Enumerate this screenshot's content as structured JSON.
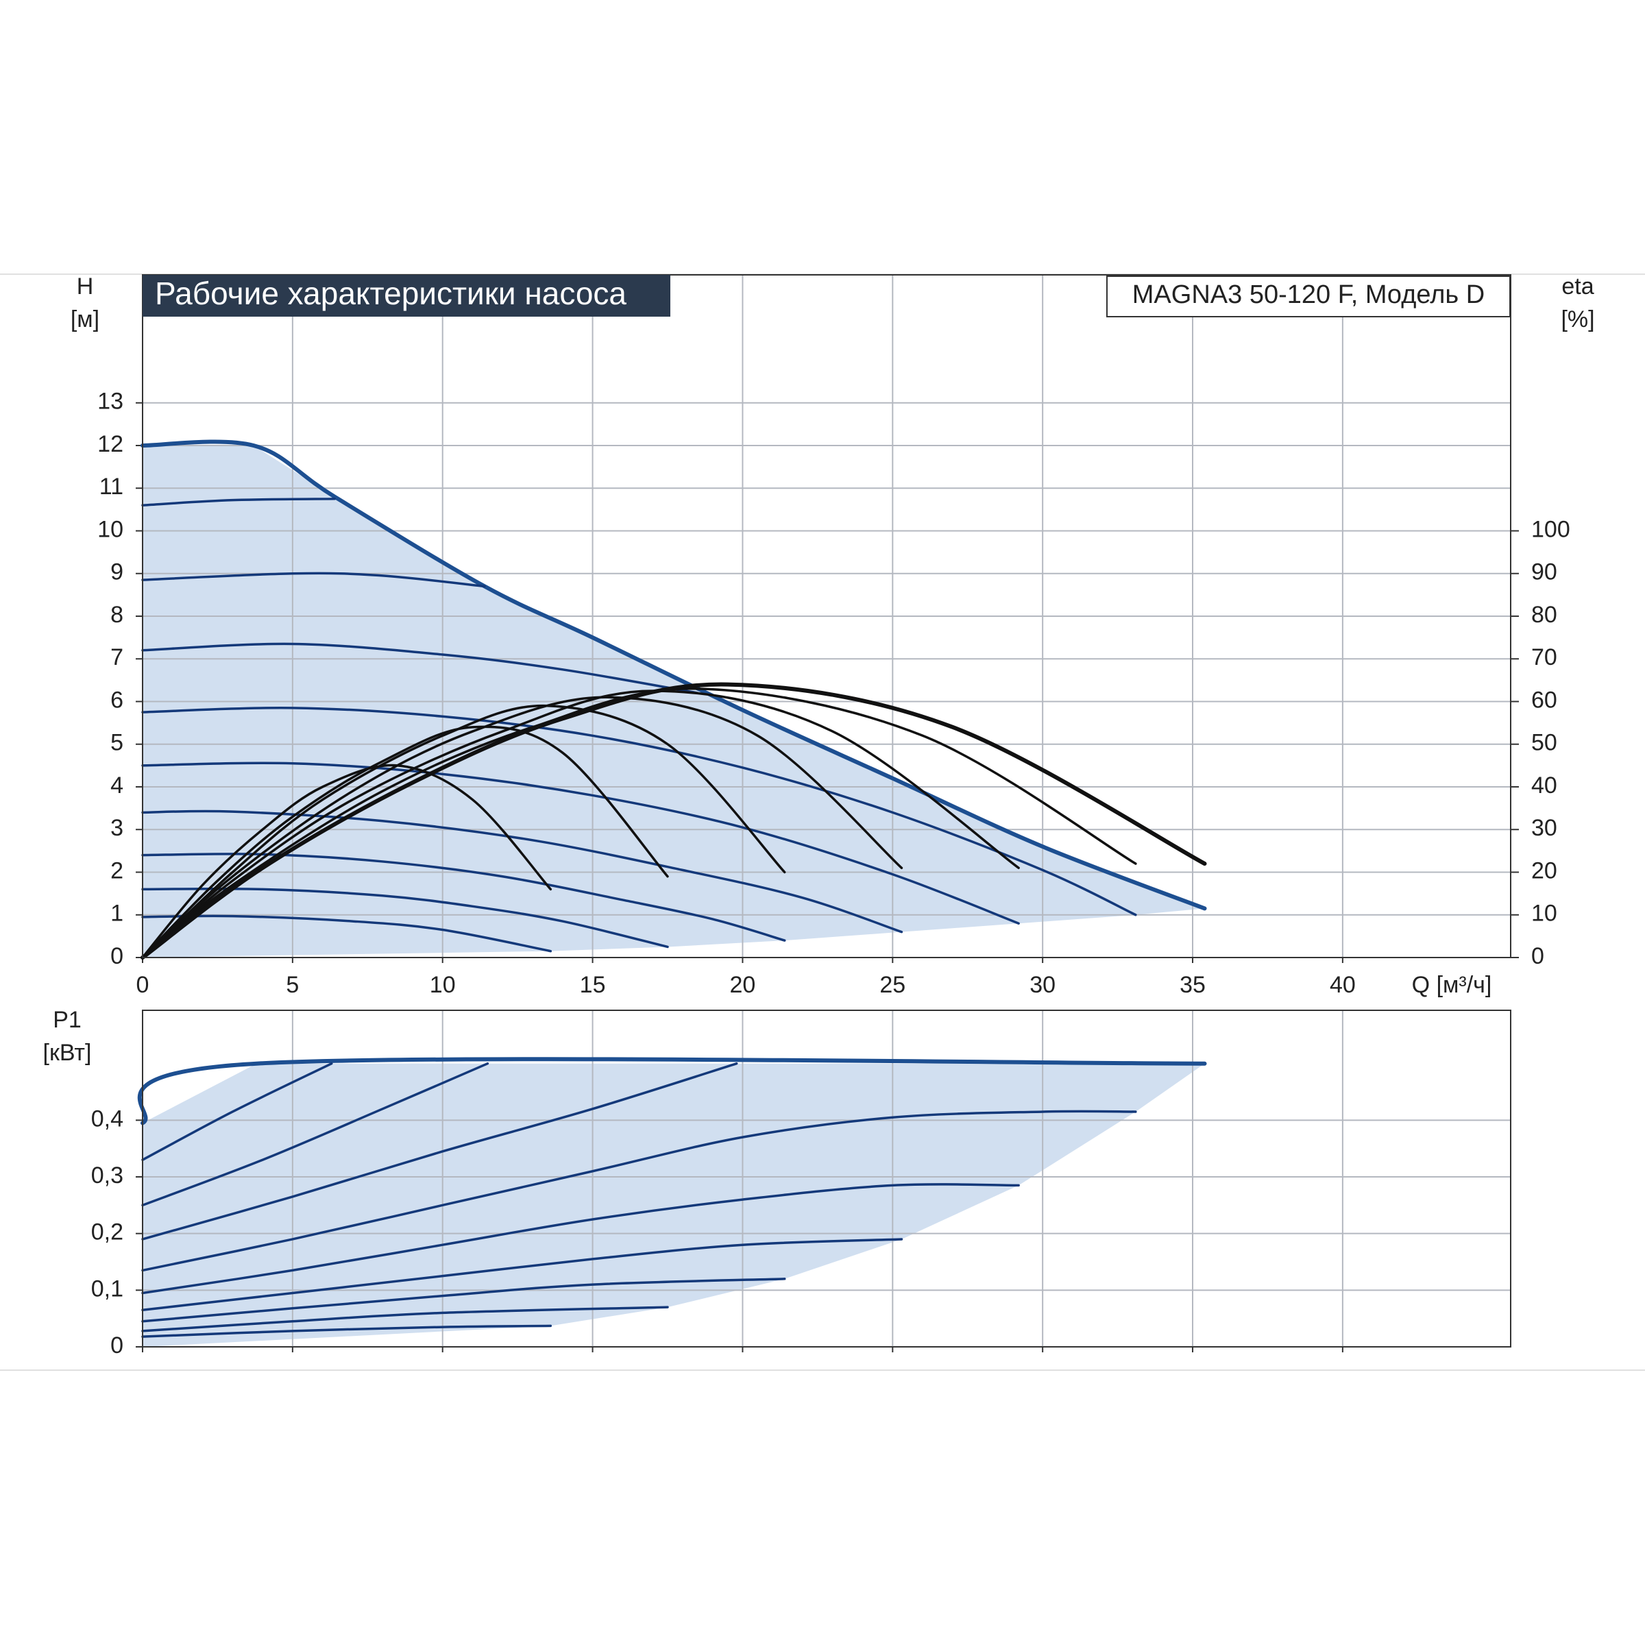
{
  "chart_data": [
    {
      "type": "line",
      "title": "Рабочие характеристики насоса",
      "annotation": "MAGNA3 50-120 F, Модель D",
      "ylabel": "H",
      "yunit": "[м]",
      "y2label": "eta",
      "y2unit": "[%]",
      "xlabel": "Q [м³/ч]",
      "xlim": [
        0,
        45.6
      ],
      "xticks": [
        0,
        5,
        10,
        15,
        20,
        25,
        30,
        35,
        40
      ],
      "ylim": [
        0,
        16
      ],
      "yticks": [
        0,
        1,
        2,
        3,
        4,
        5,
        6,
        7,
        8,
        9,
        10,
        11,
        12,
        13
      ],
      "y2lim": [
        0,
        160
      ],
      "y2ticks": [
        0,
        10,
        20,
        30,
        40,
        50,
        60,
        70,
        80,
        90,
        100
      ],
      "grid": true,
      "area_color": "#d1dff0",
      "series": [
        {
          "color": "#1d4f91",
          "x": [
            0,
            3.7,
            6.4,
            11.4,
            15,
            20,
            25,
            30,
            35.4
          ],
          "values": [
            12,
            12,
            10.8,
            8.7,
            7.5,
            5.8,
            4.2,
            2.6,
            1.15
          ]
        },
        {
          "color": "#14397a",
          "x": [
            0,
            3,
            6.4
          ],
          "values": [
            10.6,
            10.72,
            10.75
          ]
        },
        {
          "color": "#14397a",
          "x": [
            0,
            5,
            8,
            11.4
          ],
          "values": [
            8.85,
            9.0,
            8.95,
            8.7
          ]
        },
        {
          "color": "#14397a",
          "x": [
            0,
            5,
            10,
            14,
            18.5
          ],
          "values": [
            7.2,
            7.35,
            7.1,
            6.75,
            6.2
          ]
        },
        {
          "color": "#14397a",
          "x": [
            0,
            5,
            10,
            15,
            20,
            25,
            30,
            33.1
          ],
          "values": [
            5.75,
            5.85,
            5.65,
            5.2,
            4.45,
            3.4,
            2.05,
            1.0
          ]
        },
        {
          "color": "#14397a",
          "x": [
            0,
            5,
            10,
            15,
            20,
            25,
            29.2
          ],
          "values": [
            4.5,
            4.55,
            4.3,
            3.8,
            3.05,
            1.95,
            0.8
          ]
        },
        {
          "color": "#14397a",
          "x": [
            0,
            3,
            8,
            13,
            18,
            22,
            25.3
          ],
          "values": [
            3.4,
            3.42,
            3.2,
            2.75,
            2.05,
            1.4,
            0.6
          ]
        },
        {
          "color": "#14397a",
          "x": [
            0,
            4,
            8,
            12,
            16,
            19,
            21.4
          ],
          "values": [
            2.4,
            2.42,
            2.25,
            1.9,
            1.35,
            0.9,
            0.4
          ]
        },
        {
          "color": "#14397a",
          "x": [
            0,
            4,
            8,
            11,
            14,
            17.5
          ],
          "values": [
            1.6,
            1.6,
            1.45,
            1.2,
            0.85,
            0.25
          ]
        },
        {
          "color": "#14397a",
          "x": [
            0,
            3,
            7,
            10,
            13.6
          ],
          "values": [
            0.95,
            0.97,
            0.85,
            0.65,
            0.15
          ]
        },
        {
          "color": "#111111",
          "axis": "y2",
          "x": [
            0,
            2,
            4,
            6,
            8.5,
            11,
            13.6
          ],
          "values": [
            0,
            17,
            30,
            40,
            45,
            37,
            16
          ]
        },
        {
          "color": "#111111",
          "axis": "y2",
          "x": [
            0,
            2.5,
            5,
            8,
            11,
            14,
            17.5
          ],
          "values": [
            0,
            18,
            33,
            46,
            54,
            48,
            19
          ]
        },
        {
          "color": "#111111",
          "axis": "y2",
          "x": [
            0,
            3,
            6,
            10,
            13.5,
            17.5,
            21.4
          ],
          "values": [
            0,
            20,
            37,
            52,
            59,
            50,
            20
          ]
        },
        {
          "color": "#111111",
          "axis": "y2",
          "x": [
            0,
            3,
            7,
            11,
            15.5,
            20.5,
            25.3
          ],
          "values": [
            0,
            19,
            39,
            53,
            61,
            52,
            21
          ]
        },
        {
          "color": "#111111",
          "axis": "y2",
          "x": [
            0,
            3,
            7,
            12,
            17,
            23,
            29.2
          ],
          "values": [
            0,
            18,
            37,
            53,
            62.5,
            53,
            21
          ]
        },
        {
          "color": "#111111",
          "axis": "y2",
          "x": [
            0,
            3,
            8,
            13,
            18.5,
            26,
            33.1
          ],
          "values": [
            0,
            17,
            39,
            54,
            63,
            52,
            22
          ]
        },
        {
          "color": "#111111",
          "axis": "y2",
          "x": [
            0,
            4,
            9,
            14,
            19.5,
            27,
            35.4
          ],
          "values": [
            0,
            21,
            41,
            56,
            64,
            54,
            22
          ]
        }
      ]
    },
    {
      "type": "line",
      "ylabel": "P1",
      "yunit": "[кВт]",
      "xlim": [
        0,
        45.6
      ],
      "xticks": [
        0,
        5,
        10,
        15,
        20,
        25,
        30,
        35,
        40
      ],
      "ylim": [
        0,
        0.594
      ],
      "yticks": [
        0,
        {
          "value": 0.1,
          "label": "0,1"
        },
        {
          "value": 0.2,
          "label": "0,2"
        },
        {
          "value": 0.3,
          "label": "0,3"
        },
        {
          "value": 0.4,
          "label": "0,4"
        }
      ],
      "grid": true,
      "area_color": "#d1dff0",
      "series": [
        {
          "color": "#1d4f91",
          "x": [
            0,
            3.8,
            35.4
          ],
          "values": [
            0.395,
            0.5,
            0.5
          ]
        },
        {
          "color": "#14397a",
          "x": [
            0,
            3,
            6.3
          ],
          "values": [
            0.33,
            0.415,
            0.5
          ]
        },
        {
          "color": "#14397a",
          "x": [
            0,
            4,
            8,
            11.5
          ],
          "values": [
            0.25,
            0.33,
            0.42,
            0.5
          ]
        },
        {
          "color": "#14397a",
          "x": [
            0,
            5,
            10,
            15,
            19.8
          ],
          "values": [
            0.19,
            0.265,
            0.345,
            0.42,
            0.5
          ]
        },
        {
          "color": "#14397a",
          "x": [
            0,
            5,
            10,
            15,
            20,
            25,
            30,
            33.1
          ],
          "values": [
            0.135,
            0.19,
            0.25,
            0.31,
            0.37,
            0.405,
            0.415,
            0.415
          ]
        },
        {
          "color": "#14397a",
          "x": [
            0,
            5,
            10,
            15,
            20,
            25,
            29.2
          ],
          "values": [
            0.095,
            0.135,
            0.18,
            0.225,
            0.26,
            0.285,
            0.285
          ]
        },
        {
          "color": "#14397a",
          "x": [
            0,
            5,
            10,
            15,
            20,
            25.3
          ],
          "values": [
            0.065,
            0.095,
            0.125,
            0.155,
            0.18,
            0.19
          ]
        },
        {
          "color": "#14397a",
          "x": [
            0,
            5,
            10,
            15,
            21.4
          ],
          "values": [
            0.045,
            0.068,
            0.09,
            0.11,
            0.12
          ]
        },
        {
          "color": "#14397a",
          "x": [
            0,
            5,
            10,
            17.5
          ],
          "values": [
            0.028,
            0.045,
            0.06,
            0.07
          ]
        },
        {
          "color": "#14397a",
          "x": [
            0,
            5,
            10,
            13.6
          ],
          "values": [
            0.018,
            0.028,
            0.035,
            0.037
          ]
        }
      ]
    }
  ]
}
